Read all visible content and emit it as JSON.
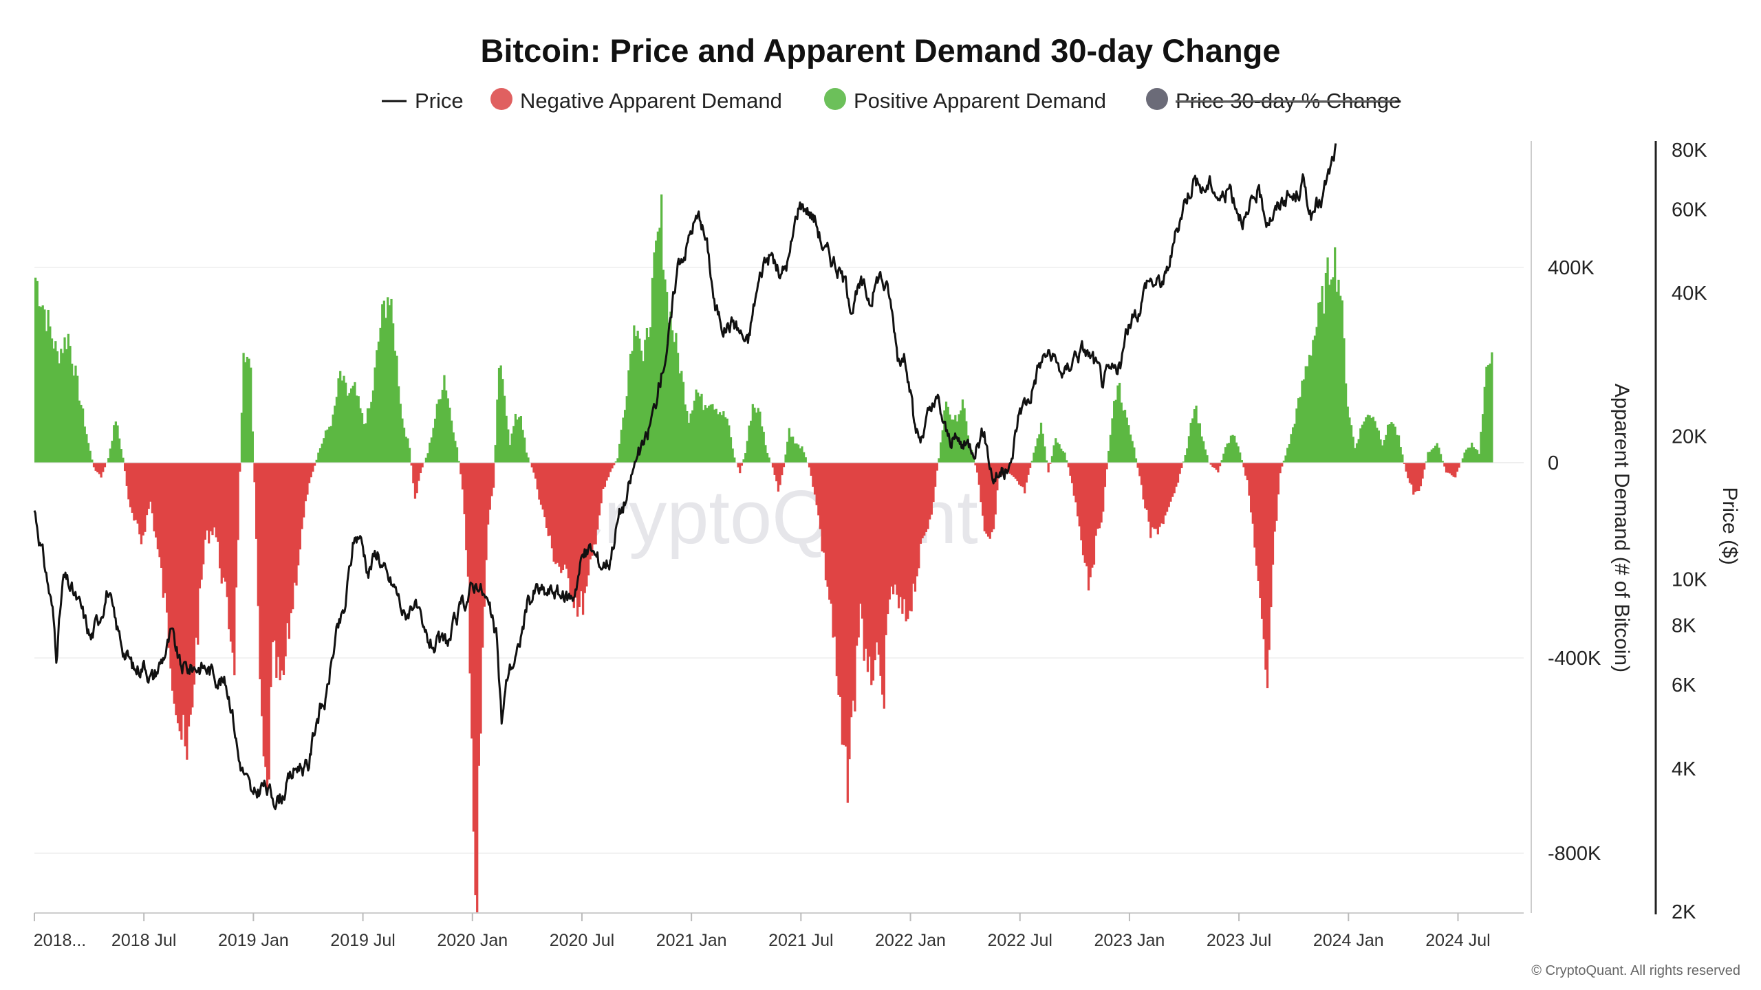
{
  "chart_data": {
    "type": "bar+line",
    "title": "Bitcoin: Price and Apparent Demand 30-day Change",
    "legend": [
      {
        "name": "Price",
        "color": "#111111",
        "marker": "line",
        "enabled": true
      },
      {
        "name": "Negative Apparent Demand",
        "color": "#e06060",
        "marker": "circle",
        "enabled": true
      },
      {
        "name": "Positive Apparent Demand",
        "color": "#6cc05a",
        "marker": "circle",
        "enabled": true
      },
      {
        "name": "Price 30-day % Change",
        "color": "#6b6b78",
        "marker": "circle",
        "enabled": false
      }
    ],
    "x_ticks": [
      "2018...",
      "2018 Jul",
      "2019 Jan",
      "2019 Jul",
      "2020 Jan",
      "2020 Jul",
      "2021 Jan",
      "2021 Jul",
      "2022 Jan",
      "2022 Jul",
      "2023 Jan",
      "2023 Jul",
      "2024 Jan",
      "2024 Jul"
    ],
    "x_range_months": [
      0,
      81.6
    ],
    "demand_axis": {
      "label": "Apparent Demand (# of Bitcoin)",
      "ticks": [
        400000,
        0,
        -400000,
        -800000
      ],
      "tick_labels": [
        "400K",
        "0",
        "-400K",
        "-800K"
      ],
      "range": [
        -922000,
        678000
      ]
    },
    "price_axis": {
      "label": "Price ($)",
      "scale": "log",
      "ticks": [
        80000,
        60000,
        40000,
        20000,
        10000,
        8000,
        6000,
        4000,
        2000
      ],
      "tick_labels": [
        "80K",
        "60K",
        "40K",
        "20K",
        "10K",
        "8K",
        "6K",
        "4K",
        "2K"
      ],
      "range": [
        2000,
        80000
      ]
    },
    "demand_keypoints": [
      [
        0,
        380000
      ],
      [
        0.6,
        300000
      ],
      [
        1.2,
        220000
      ],
      [
        1.8,
        260000
      ],
      [
        2.4,
        140000
      ],
      [
        2.9,
        40000
      ],
      [
        3.2,
        -10000
      ],
      [
        3.6,
        -30000
      ],
      [
        4,
        10000
      ],
      [
        4.4,
        90000
      ],
      [
        4.8,
        10000
      ],
      [
        5.2,
        -100000
      ],
      [
        5.8,
        -160000
      ],
      [
        6.3,
        -80000
      ],
      [
        6.9,
        -230000
      ],
      [
        7.5,
        -420000
      ],
      [
        8,
        -560000
      ],
      [
        8.3,
        -630000
      ],
      [
        8.8,
        -380000
      ],
      [
        9.3,
        -160000
      ],
      [
        9.8,
        -130000
      ],
      [
        10.3,
        -250000
      ],
      [
        10.9,
        -400000
      ],
      [
        11.2,
        -20000
      ],
      [
        11.4,
        250000
      ],
      [
        11.8,
        180000
      ],
      [
        12,
        -40000
      ],
      [
        12.4,
        -580000
      ],
      [
        12.7,
        -710000
      ],
      [
        13,
        -400000
      ],
      [
        13.5,
        -470000
      ],
      [
        13.9,
        -340000
      ],
      [
        14.4,
        -200000
      ],
      [
        14.9,
        -60000
      ],
      [
        15.2,
        -20000
      ],
      [
        15.5,
        20000
      ],
      [
        15.9,
        60000
      ],
      [
        16.3,
        90000
      ],
      [
        16.7,
        180000
      ],
      [
        17.1,
        140000
      ],
      [
        17.5,
        150000
      ],
      [
        18,
        80000
      ],
      [
        18.4,
        120000
      ],
      [
        18.9,
        280000
      ],
      [
        19.3,
        350000
      ],
      [
        19.7,
        250000
      ],
      [
        20.1,
        90000
      ],
      [
        20.5,
        30000
      ],
      [
        20.8,
        -80000
      ],
      [
        21.1,
        -20000
      ],
      [
        21.5,
        20000
      ],
      [
        22,
        110000
      ],
      [
        22.4,
        180000
      ],
      [
        22.8,
        90000
      ],
      [
        23.1,
        30000
      ],
      [
        23.4,
        -50000
      ],
      [
        23.7,
        -250000
      ],
      [
        24,
        -830000
      ],
      [
        24.2,
        -850000
      ],
      [
        24.5,
        -400000
      ],
      [
        24.8,
        -120000
      ],
      [
        25.1,
        -50000
      ],
      [
        25.4,
        200000
      ],
      [
        25.7,
        140000
      ],
      [
        26,
        40000
      ],
      [
        26.3,
        90000
      ],
      [
        26.6,
        100000
      ],
      [
        26.9,
        20000
      ],
      [
        27.3,
        -20000
      ],
      [
        27.8,
        -100000
      ],
      [
        28.3,
        -180000
      ],
      [
        28.8,
        -220000
      ],
      [
        29.3,
        -250000
      ],
      [
        29.8,
        -300000
      ],
      [
        30.2,
        -270000
      ],
      [
        30.7,
        -150000
      ],
      [
        31.1,
        -60000
      ],
      [
        31.5,
        -20000
      ],
      [
        31.9,
        10000
      ],
      [
        32.3,
        120000
      ],
      [
        32.7,
        260000
      ],
      [
        33,
        300000
      ],
      [
        33.3,
        200000
      ],
      [
        33.6,
        280000
      ],
      [
        34,
        420000
      ],
      [
        34.3,
        500000
      ],
      [
        34.6,
        340000
      ],
      [
        35,
        260000
      ],
      [
        35.4,
        180000
      ],
      [
        35.8,
        90000
      ],
      [
        36.2,
        150000
      ],
      [
        36.6,
        120000
      ],
      [
        37,
        130000
      ],
      [
        37.4,
        110000
      ],
      [
        37.9,
        90000
      ],
      [
        38.3,
        10000
      ],
      [
        38.6,
        -20000
      ],
      [
        38.9,
        20000
      ],
      [
        39.3,
        120000
      ],
      [
        39.7,
        100000
      ],
      [
        40.1,
        20000
      ],
      [
        40.4,
        -10000
      ],
      [
        40.7,
        -60000
      ],
      [
        41,
        -10000
      ],
      [
        41.3,
        70000
      ],
      [
        41.6,
        40000
      ],
      [
        42,
        30000
      ],
      [
        42.4,
        -10000
      ],
      [
        42.8,
        -80000
      ],
      [
        43.2,
        -200000
      ],
      [
        43.6,
        -300000
      ],
      [
        44,
        -490000
      ],
      [
        44.4,
        -660000
      ],
      [
        44.8,
        -520000
      ],
      [
        45.2,
        -280000
      ],
      [
        45.6,
        -470000
      ],
      [
        46,
        -390000
      ],
      [
        46.4,
        -500000
      ],
      [
        46.9,
        -250000
      ],
      [
        47.3,
        -300000
      ],
      [
        47.7,
        -320000
      ],
      [
        48.1,
        -260000
      ],
      [
        48.6,
        -170000
      ],
      [
        49.1,
        -100000
      ],
      [
        49.5,
        10000
      ],
      [
        49.9,
        130000
      ],
      [
        50.3,
        80000
      ],
      [
        50.8,
        120000
      ],
      [
        51.2,
        40000
      ],
      [
        51.6,
        -20000
      ],
      [
        52,
        -130000
      ],
      [
        52.4,
        -160000
      ],
      [
        52.8,
        -30000
      ],
      [
        53.3,
        -20000
      ],
      [
        53.8,
        -40000
      ],
      [
        54.2,
        -60000
      ],
      [
        54.7,
        20000
      ],
      [
        55.1,
        80000
      ],
      [
        55.5,
        -20000
      ],
      [
        55.9,
        50000
      ],
      [
        56.4,
        20000
      ],
      [
        56.8,
        -40000
      ],
      [
        57.3,
        -150000
      ],
      [
        57.7,
        -240000
      ],
      [
        58.1,
        -170000
      ],
      [
        58.5,
        -90000
      ],
      [
        58.9,
        60000
      ],
      [
        59.3,
        170000
      ],
      [
        59.7,
        100000
      ],
      [
        60.2,
        30000
      ],
      [
        60.6,
        -50000
      ],
      [
        61.1,
        -150000
      ],
      [
        61.6,
        -130000
      ],
      [
        62.1,
        -100000
      ],
      [
        62.6,
        -40000
      ],
      [
        63.1,
        30000
      ],
      [
        63.5,
        120000
      ],
      [
        63.9,
        60000
      ],
      [
        64.3,
        0
      ],
      [
        64.8,
        -20000
      ],
      [
        65.2,
        30000
      ],
      [
        65.6,
        60000
      ],
      [
        66,
        20000
      ],
      [
        66.4,
        -40000
      ],
      [
        66.8,
        -160000
      ],
      [
        67.2,
        -350000
      ],
      [
        67.5,
        -440000
      ],
      [
        67.8,
        -200000
      ],
      [
        68.2,
        -20000
      ],
      [
        68.7,
        40000
      ],
      [
        69.2,
        120000
      ],
      [
        69.7,
        210000
      ],
      [
        70.2,
        280000
      ],
      [
        70.7,
        360000
      ],
      [
        71.1,
        430000
      ],
      [
        71.5,
        360000
      ],
      [
        71.9,
        120000
      ],
      [
        72.3,
        30000
      ],
      [
        72.8,
        90000
      ],
      [
        73.3,
        100000
      ],
      [
        73.8,
        40000
      ],
      [
        74.3,
        90000
      ],
      [
        74.7,
        50000
      ],
      [
        75.1,
        -20000
      ],
      [
        75.5,
        -60000
      ],
      [
        75.9,
        -50000
      ],
      [
        76.3,
        20000
      ],
      [
        76.8,
        40000
      ],
      [
        77.3,
        -20000
      ],
      [
        77.8,
        -30000
      ],
      [
        78.3,
        20000
      ],
      [
        78.7,
        40000
      ],
      [
        79.1,
        20000
      ],
      [
        79.5,
        180000
      ],
      [
        79.8,
        250000
      ]
    ],
    "price_keypoints": [
      [
        0,
        14000
      ],
      [
        0.5,
        11000
      ],
      [
        1,
        8500
      ],
      [
        1.2,
        7000
      ],
      [
        1.6,
        10000
      ],
      [
        2,
        9500
      ],
      [
        2.6,
        8500
      ],
      [
        3.1,
        7500
      ],
      [
        3.5,
        8200
      ],
      [
        4,
        9600
      ],
      [
        4.4,
        8000
      ],
      [
        5,
        7000
      ],
      [
        5.5,
        6400
      ],
      [
        6,
        6700
      ],
      [
        6.5,
        6200
      ],
      [
        7,
        6800
      ],
      [
        7.5,
        7600
      ],
      [
        8,
        6500
      ],
      [
        8.5,
        6500
      ],
      [
        9,
        6600
      ],
      [
        9.5,
        6500
      ],
      [
        10,
        6300
      ],
      [
        10.5,
        6000
      ],
      [
        10.8,
        5500
      ],
      [
        11.2,
        4200
      ],
      [
        11.6,
        3800
      ],
      [
        12,
        3400
      ],
      [
        12.5,
        3700
      ],
      [
        13,
        3500
      ],
      [
        13.5,
        3500
      ],
      [
        14,
        3800
      ],
      [
        14.5,
        4100
      ],
      [
        15,
        4000
      ],
      [
        15.5,
        5200
      ],
      [
        16,
        5600
      ],
      [
        16.5,
        7500
      ],
      [
        17,
        8500
      ],
      [
        17.5,
        12000
      ],
      [
        17.8,
        12500
      ],
      [
        18.3,
        10500
      ],
      [
        18.8,
        11500
      ],
      [
        19.3,
        10000
      ],
      [
        19.8,
        9500
      ],
      [
        20.3,
        8300
      ],
      [
        20.8,
        9100
      ],
      [
        21.3,
        7500
      ],
      [
        21.8,
        7300
      ],
      [
        22.3,
        7200
      ],
      [
        22.8,
        7500
      ],
      [
        23.3,
        8500
      ],
      [
        23.8,
        9300
      ],
      [
        24.3,
        10000
      ],
      [
        24.8,
        8900
      ],
      [
        25.3,
        7500
      ],
      [
        25.6,
        5000
      ],
      [
        26,
        6500
      ],
      [
        26.5,
        7000
      ],
      [
        27,
        8800
      ],
      [
        27.5,
        9500
      ],
      [
        28,
        9300
      ],
      [
        28.5,
        9500
      ],
      [
        29,
        9100
      ],
      [
        29.5,
        9200
      ],
      [
        30,
        11100
      ],
      [
        30.5,
        11500
      ],
      [
        31,
        10800
      ],
      [
        31.5,
        11000
      ],
      [
        32,
        13500
      ],
      [
        32.5,
        15000
      ],
      [
        33,
        18000
      ],
      [
        33.5,
        19300
      ],
      [
        34,
        23000
      ],
      [
        34.5,
        29000
      ],
      [
        34.9,
        35000
      ],
      [
        35.3,
        47000
      ],
      [
        35.7,
        50000
      ],
      [
        36.1,
        56000
      ],
      [
        36.5,
        58000
      ],
      [
        36.9,
        49000
      ],
      [
        37.3,
        37000
      ],
      [
        37.8,
        34000
      ],
      [
        38.3,
        35000
      ],
      [
        38.7,
        33000
      ],
      [
        39.1,
        31000
      ],
      [
        39.5,
        39000
      ],
      [
        40,
        47000
      ],
      [
        40.4,
        48000
      ],
      [
        40.9,
        43000
      ],
      [
        41.4,
        48000
      ],
      [
        41.9,
        62000
      ],
      [
        42.3,
        61000
      ],
      [
        42.8,
        57000
      ],
      [
        43.3,
        49000
      ],
      [
        43.8,
        47000
      ],
      [
        44.3,
        43000
      ],
      [
        44.8,
        38000
      ],
      [
        45.3,
        41000
      ],
      [
        45.8,
        39000
      ],
      [
        46.3,
        44000
      ],
      [
        46.8,
        40000
      ],
      [
        47.3,
        30000
      ],
      [
        47.8,
        29000
      ],
      [
        48.2,
        21000
      ],
      [
        48.6,
        19500
      ],
      [
        49,
        22000
      ],
      [
        49.5,
        23500
      ],
      [
        50,
        20000
      ],
      [
        50.5,
        19500
      ],
      [
        51,
        19000
      ],
      [
        51.5,
        19300
      ],
      [
        52,
        20500
      ],
      [
        52.5,
        16500
      ],
      [
        53,
        16800
      ],
      [
        53.5,
        17000
      ],
      [
        54,
        23000
      ],
      [
        54.5,
        24000
      ],
      [
        55,
        28000
      ],
      [
        55.5,
        30000
      ],
      [
        56,
        28000
      ],
      [
        56.5,
        27000
      ],
      [
        57,
        30000
      ],
      [
        57.5,
        30500
      ],
      [
        58,
        29000
      ],
      [
        58.5,
        26000
      ],
      [
        59,
        27000
      ],
      [
        59.5,
        28000
      ],
      [
        60,
        34500
      ],
      [
        60.5,
        37000
      ],
      [
        61,
        43000
      ],
      [
        61.5,
        42000
      ],
      [
        62,
        43000
      ],
      [
        62.5,
        52000
      ],
      [
        63,
        62000
      ],
      [
        63.5,
        70000
      ],
      [
        64,
        66000
      ],
      [
        64.5,
        68000
      ],
      [
        65,
        63000
      ],
      [
        65.5,
        67000
      ],
      [
        66,
        60000
      ],
      [
        66.5,
        57000
      ],
      [
        67,
        65000
      ],
      [
        67.5,
        58000
      ],
      [
        68,
        59000
      ],
      [
        68.5,
        64000
      ],
      [
        69,
        63000
      ],
      [
        69.5,
        68000
      ],
      [
        70,
        58000
      ],
      [
        70.5,
        62000
      ],
      [
        71,
        72000
      ],
      [
        71.3,
        80000
      ]
    ]
  },
  "watermark": "CryptoQuant",
  "copyright": "© CryptoQuant. All rights reserved"
}
